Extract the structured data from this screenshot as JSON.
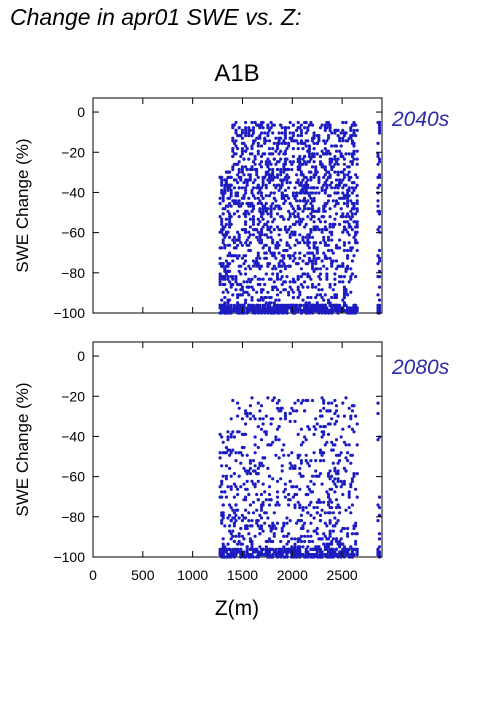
{
  "page": {
    "title": "Change in apr01 SWE vs. Z:"
  },
  "chart_data": [
    {
      "type": "scatter",
      "title": "A1B",
      "period_label": "2040s",
      "xlabel": "",
      "ylabel": "SWE Change (%)",
      "xlim": [
        0,
        2900
      ],
      "ylim": [
        -100,
        7
      ],
      "x_ticks": [
        "0",
        "500",
        "1000",
        "1500",
        "2000",
        "2500"
      ],
      "y_ticks": [
        "0",
        "−20",
        "−40",
        "−60",
        "−80",
        "−100"
      ],
      "marker_color": "#1c1cc0",
      "label_color": "#2a2aa8",
      "point_density": "high",
      "elevation_range_m": [
        1270,
        2880
      ],
      "max_change_pct": -5,
      "min_change_pct": -100
    },
    {
      "type": "scatter",
      "title": "",
      "period_label": "2080s",
      "xlabel": "Z(m)",
      "ylabel": "SWE Change (%)",
      "xlim": [
        0,
        2900
      ],
      "ylim": [
        -100,
        7
      ],
      "x_ticks": [
        "0",
        "500",
        "1000",
        "1500",
        "2000",
        "2500"
      ],
      "y_ticks": [
        "0",
        "−20",
        "−40",
        "−60",
        "−80",
        "−100"
      ],
      "marker_color": "#1c1cc0",
      "label_color": "#2a2aa8",
      "point_density": "medium",
      "elevation_range_m": [
        1270,
        2880
      ],
      "max_change_pct": -20,
      "min_change_pct": -100
    }
  ]
}
